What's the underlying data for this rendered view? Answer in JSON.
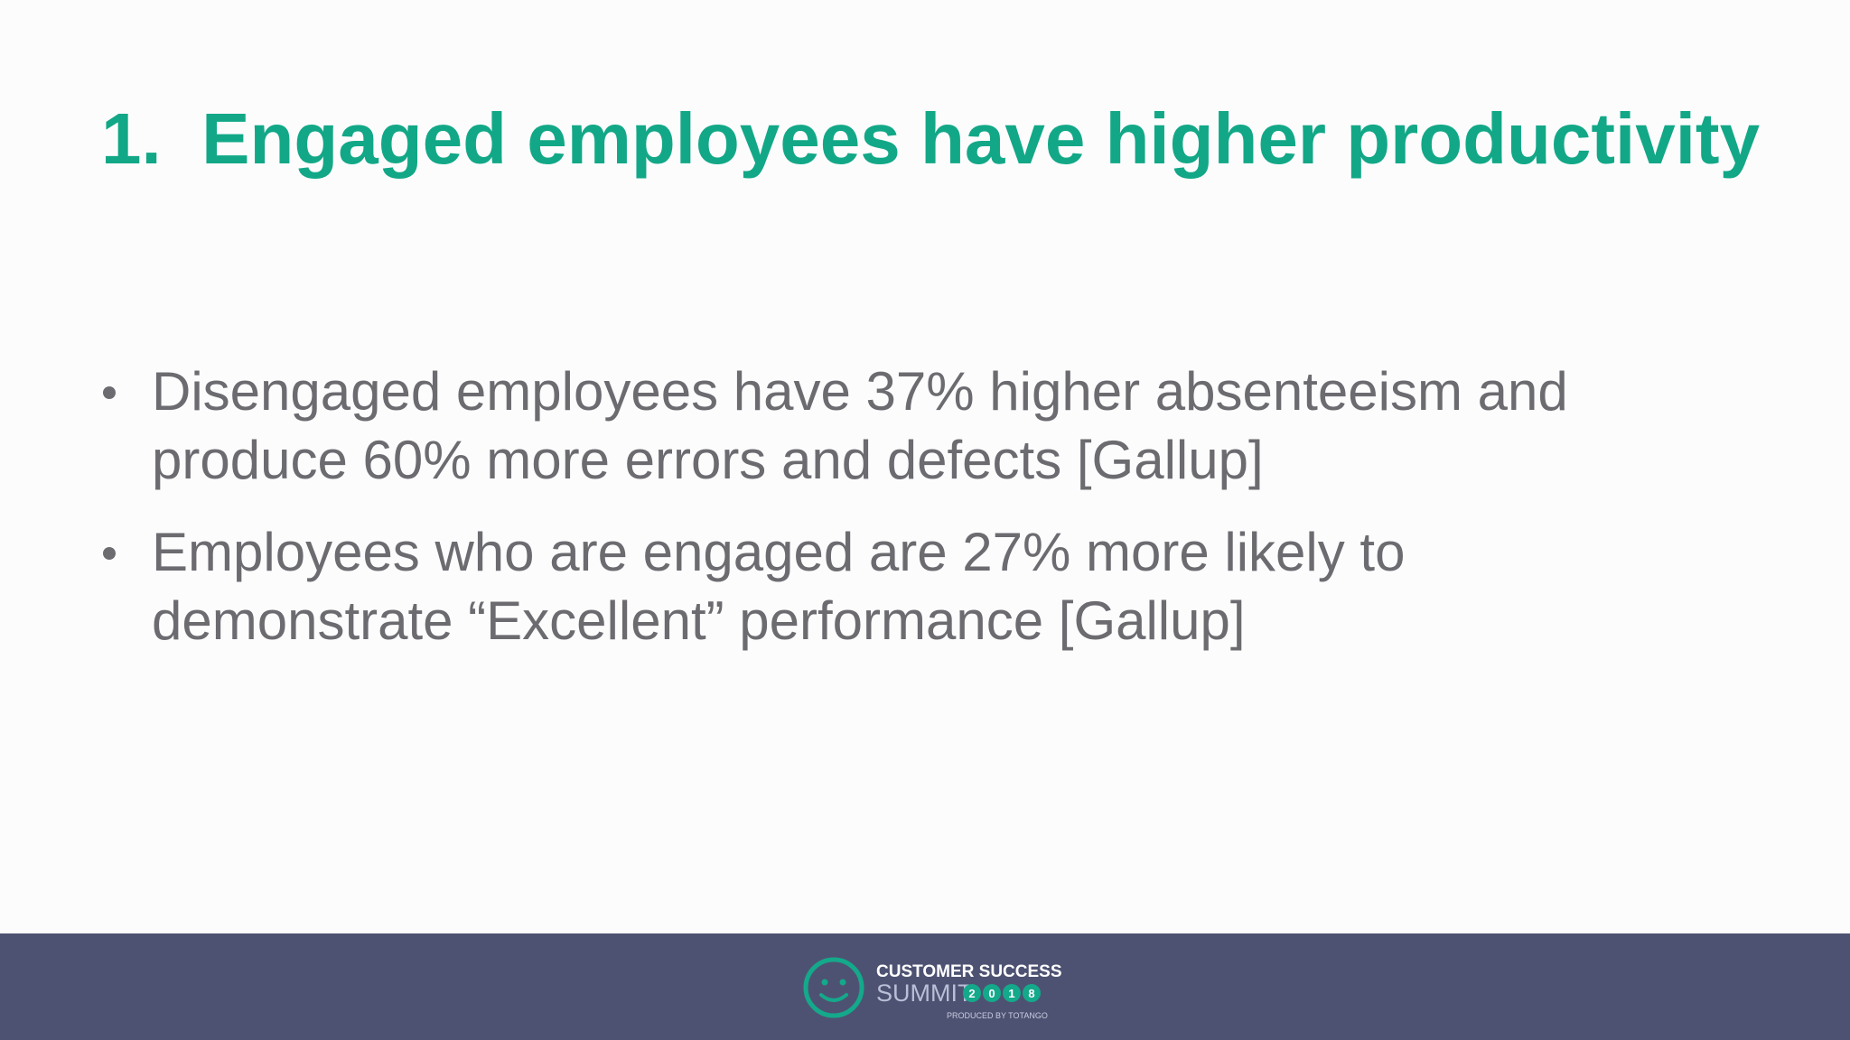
{
  "slide": {
    "title": "1.  Engaged employees have higher productivity",
    "bullets": [
      "Disengaged employees have 37% higher absenteeism and produce 60% more errors and defects [Gallup]",
      "Employees who are engaged are 27% more likely to demonstrate “Excellent” performance [Gallup]"
    ]
  },
  "footer": {
    "brand_line1": "CUSTOMER SUCCESS",
    "brand_line2": "SUMMIT",
    "year_digits": [
      "2",
      "0",
      "1",
      "8"
    ],
    "tagline": "PRODUCED BY TOTANGO"
  }
}
